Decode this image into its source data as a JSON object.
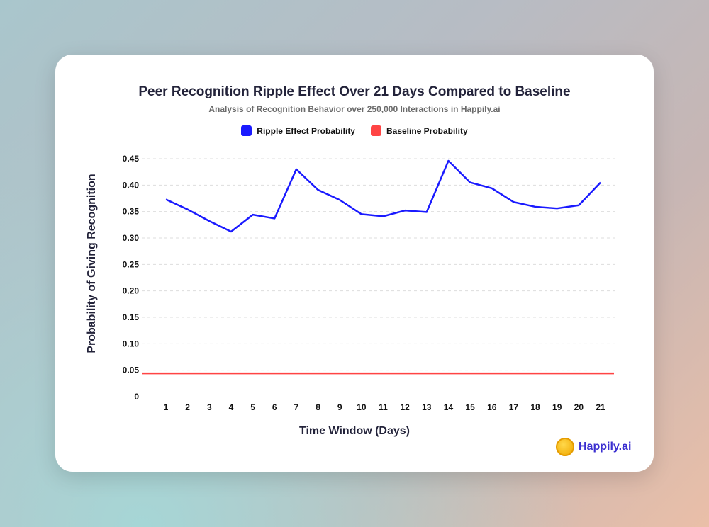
{
  "chart_data": {
    "type": "line",
    "title": "Peer Recognition Ripple Effect Over 21 Days Compared to Baseline",
    "subtitle": "Analysis of Recognition Behavior over 250,000 Interactions in Happily.ai",
    "xlabel": "Time Window (Days)",
    "ylabel": "Probability of Giving Recognition",
    "x": [
      1,
      2,
      3,
      4,
      5,
      6,
      7,
      8,
      9,
      10,
      11,
      12,
      13,
      14,
      15,
      16,
      17,
      18,
      19,
      20,
      21
    ],
    "ylim": [
      0,
      0.45
    ],
    "yticks": [
      "0",
      "0.05",
      "0.10",
      "0.15",
      "0.20",
      "0.25",
      "0.30",
      "0.35",
      "0.40",
      "0.45"
    ],
    "grid": true,
    "legend_position": "top",
    "series": [
      {
        "name": "Ripple Effect Probability",
        "color": "#1a1aff",
        "values": [
          0.373,
          0.354,
          0.332,
          0.312,
          0.344,
          0.337,
          0.43,
          0.391,
          0.372,
          0.345,
          0.341,
          0.352,
          0.349,
          0.446,
          0.405,
          0.394,
          0.368,
          0.359,
          0.356,
          0.362,
          0.405
        ]
      },
      {
        "name": "Baseline Probability",
        "color": "#ff4444",
        "values": [
          0.044,
          0.044,
          0.044,
          0.044,
          0.044,
          0.044,
          0.044,
          0.044,
          0.044,
          0.044,
          0.044,
          0.044,
          0.044,
          0.044,
          0.044,
          0.044,
          0.044,
          0.044,
          0.044,
          0.044,
          0.044
        ]
      }
    ]
  },
  "brand": {
    "name": "Happily.ai"
  }
}
